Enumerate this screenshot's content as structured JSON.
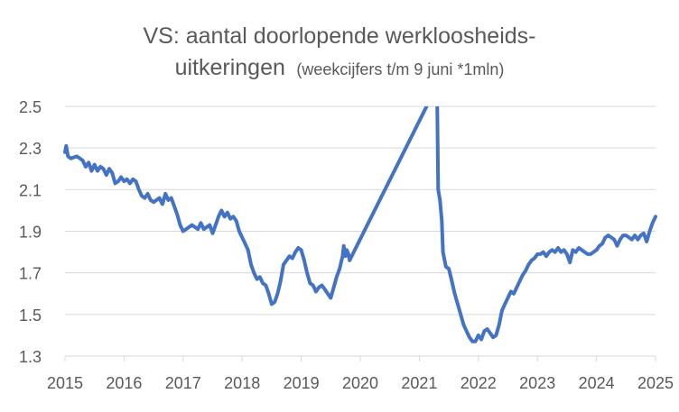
{
  "chart_data": {
    "type": "line",
    "title_main": "VS: aantal doorlopende werkloosheids-",
    "title_line2": "uitkeringen",
    "title_note": "(weekcijfers t/m 9 juni *1mln)",
    "xlabel": "",
    "ylabel": "",
    "xlim": [
      2015,
      2025
    ],
    "ylim": [
      1.3,
      2.5
    ],
    "x_ticks": [
      "2015",
      "2016",
      "2017",
      "2018",
      "2019",
      "2020",
      "2021",
      "2022",
      "2023",
      "2024",
      "2025"
    ],
    "y_ticks": [
      "2.5",
      "2.3",
      "2.1",
      "1.9",
      "1.7",
      "1.5",
      "1.3"
    ],
    "grid": true,
    "legend": "none",
    "line_color": "#4472c4",
    "grid_color": "#d9d9d9",
    "series": [
      {
        "x": [
          2015.0,
          2015.02,
          2015.05,
          2015.1,
          2015.2,
          2015.3,
          2015.35,
          2015.4,
          2015.45,
          2015.5,
          2015.55,
          2015.6,
          2015.65,
          2015.7,
          2015.75,
          2015.8,
          2015.85,
          2015.9,
          2015.95,
          2016.0,
          2016.05,
          2016.1,
          2016.15,
          2016.2,
          2016.25,
          2016.3,
          2016.35,
          2016.4,
          2016.45,
          2016.5,
          2016.55,
          2016.6,
          2016.65,
          2016.7,
          2016.75,
          2016.8,
          2016.85,
          2016.9,
          2016.95,
          2017.0,
          2017.05,
          2017.1,
          2017.15,
          2017.2,
          2017.25,
          2017.3,
          2017.35,
          2017.4,
          2017.45,
          2017.5,
          2017.55,
          2017.6,
          2017.65,
          2017.7,
          2017.75,
          2017.8,
          2017.85,
          2017.9,
          2017.95,
          2018.0,
          2018.05,
          2018.1,
          2018.15,
          2018.2,
          2018.25,
          2018.3,
          2018.35,
          2018.4,
          2018.45,
          2018.5,
          2018.55,
          2018.6,
          2018.65,
          2018.7,
          2018.75,
          2018.8,
          2018.85,
          2018.9,
          2018.95,
          2019.0,
          2019.05,
          2019.1,
          2019.15,
          2019.2,
          2019.25,
          2019.3,
          2019.35,
          2019.4,
          2019.45,
          2019.5,
          2019.55,
          2019.6,
          2019.65,
          2019.7,
          2019.72,
          2019.75,
          2019.77,
          2019.8,
          2019.82,
          2021.3,
          2021.32,
          2021.35,
          2021.38,
          2021.4,
          2021.45,
          2021.5,
          2021.55,
          2021.6,
          2021.65,
          2021.7,
          2021.75,
          2021.8,
          2021.85,
          2021.9,
          2021.95,
          2022.0,
          2022.05,
          2022.1,
          2022.15,
          2022.2,
          2022.25,
          2022.3,
          2022.35,
          2022.4,
          2022.45,
          2022.5,
          2022.55,
          2022.6,
          2022.65,
          2022.7,
          2022.75,
          2022.8,
          2022.85,
          2022.9,
          2022.95,
          2023.0,
          2023.05,
          2023.1,
          2023.15,
          2023.2,
          2023.25,
          2023.3,
          2023.35,
          2023.4,
          2023.45,
          2023.5,
          2023.55,
          2023.6,
          2023.65,
          2023.7,
          2023.75,
          2023.8,
          2023.85,
          2023.9,
          2023.95,
          2024.0,
          2024.05,
          2024.1,
          2024.15,
          2024.2,
          2024.25,
          2024.3,
          2024.35,
          2024.4,
          2024.45,
          2024.5,
          2024.55,
          2024.6,
          2024.65,
          2024.7,
          2024.75,
          2024.8,
          2024.85,
          2024.9,
          2024.95,
          2025.0
        ],
        "values": [
          2.28,
          2.31,
          2.26,
          2.25,
          2.26,
          2.24,
          2.21,
          2.23,
          2.19,
          2.22,
          2.19,
          2.21,
          2.2,
          2.17,
          2.2,
          2.18,
          2.13,
          2.14,
          2.16,
          2.14,
          2.15,
          2.13,
          2.15,
          2.14,
          2.1,
          2.07,
          2.06,
          2.08,
          2.05,
          2.04,
          2.05,
          2.06,
          2.03,
          2.08,
          2.05,
          2.06,
          2.02,
          1.98,
          1.93,
          1.9,
          1.91,
          1.92,
          1.93,
          1.92,
          1.91,
          1.94,
          1.91,
          1.92,
          1.93,
          1.89,
          1.93,
          1.97,
          2.0,
          1.97,
          1.99,
          1.96,
          1.97,
          1.95,
          1.9,
          1.87,
          1.84,
          1.81,
          1.74,
          1.7,
          1.67,
          1.68,
          1.65,
          1.64,
          1.6,
          1.55,
          1.56,
          1.6,
          1.66,
          1.74,
          1.76,
          1.78,
          1.77,
          1.8,
          1.82,
          1.81,
          1.76,
          1.7,
          1.65,
          1.64,
          1.61,
          1.63,
          1.64,
          1.62,
          1.6,
          1.58,
          1.63,
          1.68,
          1.72,
          1.78,
          1.83,
          1.78,
          1.81,
          1.79,
          1.76,
          2.6,
          2.1,
          2.05,
          1.95,
          1.8,
          1.73,
          1.72,
          1.66,
          1.6,
          1.55,
          1.5,
          1.45,
          1.42,
          1.39,
          1.37,
          1.37,
          1.4,
          1.38,
          1.42,
          1.43,
          1.41,
          1.39,
          1.4,
          1.45,
          1.52,
          1.55,
          1.58,
          1.61,
          1.6,
          1.63,
          1.66,
          1.69,
          1.71,
          1.74,
          1.76,
          1.77,
          1.79,
          1.79,
          1.8,
          1.78,
          1.8,
          1.81,
          1.8,
          1.82,
          1.8,
          1.81,
          1.79,
          1.75,
          1.81,
          1.8,
          1.82,
          1.81,
          1.8,
          1.79,
          1.79,
          1.8,
          1.81,
          1.83,
          1.84,
          1.87,
          1.88,
          1.87,
          1.86,
          1.83,
          1.86,
          1.88,
          1.88,
          1.87,
          1.86,
          1.88,
          1.86,
          1.88,
          1.89,
          1.85,
          1.9,
          1.94,
          1.97
        ]
      }
    ]
  }
}
